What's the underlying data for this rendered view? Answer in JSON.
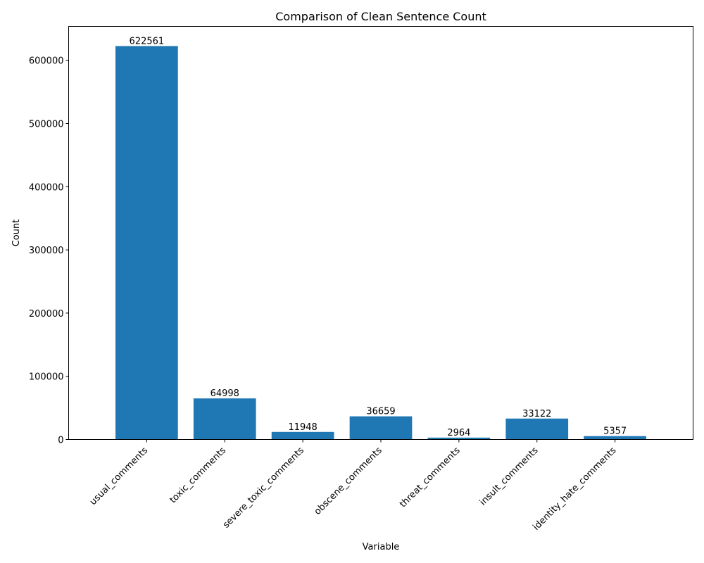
{
  "chart_data": {
    "type": "bar",
    "title": "Comparison of Clean Sentence Count",
    "xlabel": "Variable",
    "ylabel": "Count",
    "categories": [
      "usual_comments",
      "toxic_comments",
      "severe_toxic_comments",
      "obscene_comments",
      "threat_comments",
      "insult_comments",
      "identity_hate_comments"
    ],
    "values": [
      622561,
      64998,
      11948,
      36659,
      2964,
      33122,
      5357
    ],
    "ylim": [
      0,
      653689
    ],
    "yticks": [
      0,
      100000,
      200000,
      300000,
      400000,
      500000,
      600000
    ],
    "bar_color": "#1f77b4",
    "grid": false,
    "legend": "none"
  }
}
